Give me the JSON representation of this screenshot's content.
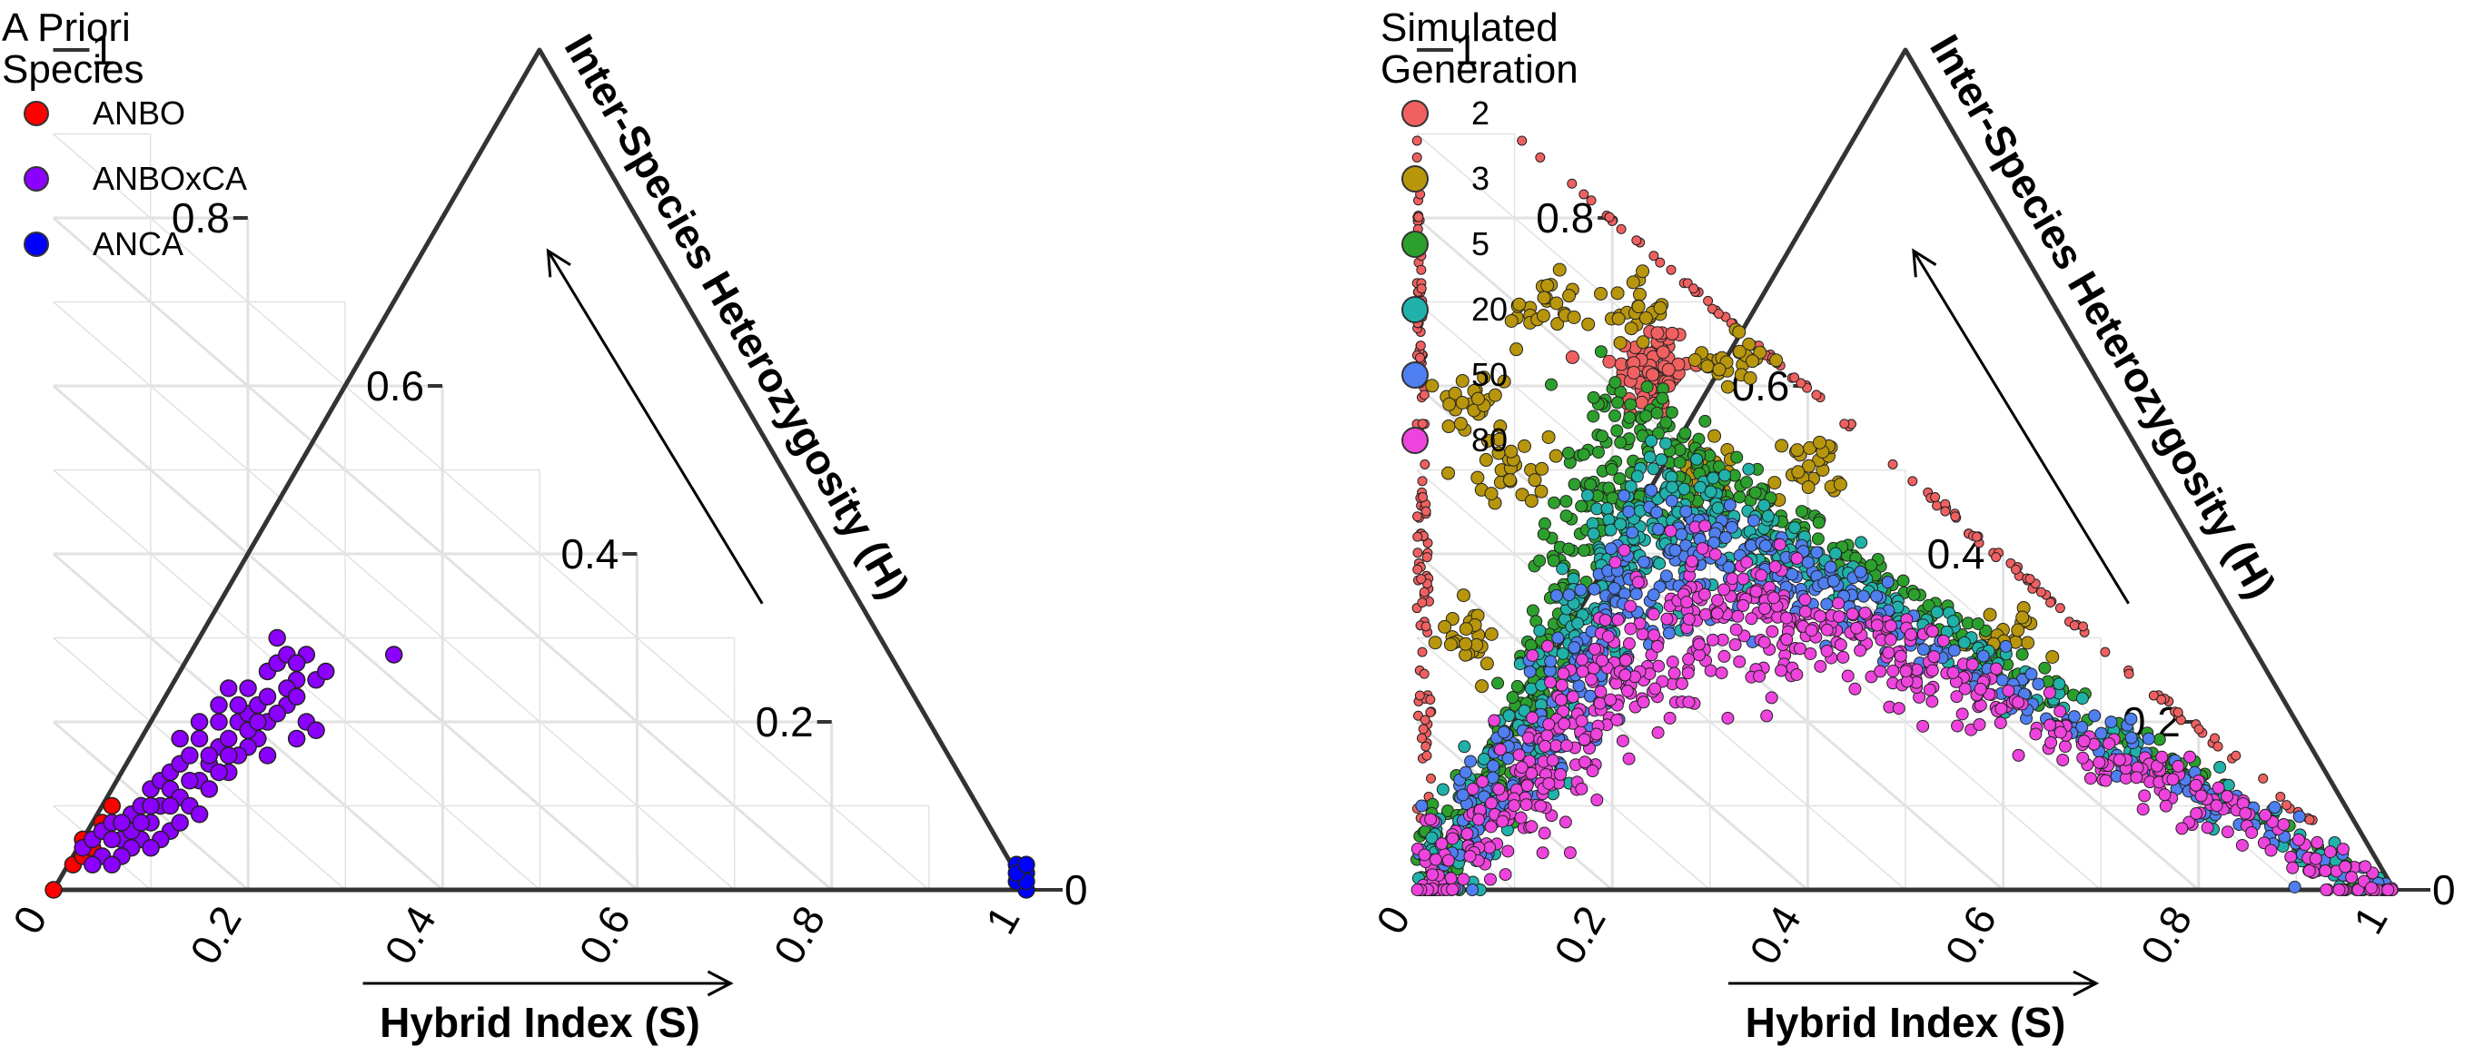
{
  "chart_data": [
    {
      "type": "scatter",
      "subtype": "ternary",
      "legend_title": "A Priori\nSpecies",
      "xlabel": "Hybrid Index (S)",
      "ylabel": "Inter-Species Heterozygosity (H)",
      "x_ticks": [
        "0",
        "0.2",
        "0.4",
        "0.6",
        "0.8",
        "1"
      ],
      "y_ticks": [
        "0",
        "0.2",
        "0.4",
        "0.6",
        "0.8",
        "1"
      ],
      "xlim": [
        0,
        1
      ],
      "ylim": [
        0,
        1
      ],
      "grid": true,
      "legend_position": "top-left",
      "series": [
        {
          "name": "ANBO",
          "color": "#ff0000",
          "points": [
            [
              0,
              0
            ],
            [
              0.02,
              0.03
            ],
            [
              0.03,
              0.04
            ],
            [
              0.04,
              0.06
            ],
            [
              0.05,
              0.08
            ],
            [
              0.06,
              0.1
            ],
            [
              0.04,
              0.05
            ],
            [
              0.05,
              0.07
            ],
            [
              0.03,
              0.06
            ]
          ]
        },
        {
          "name": "ANBOxCA",
          "color": "#8b00ff",
          "points": [
            [
              0.03,
              0.05
            ],
            [
              0.04,
              0.06
            ],
            [
              0.05,
              0.07
            ],
            [
              0.06,
              0.08
            ],
            [
              0.05,
              0.04
            ],
            [
              0.07,
              0.06
            ],
            [
              0.08,
              0.09
            ],
            [
              0.09,
              0.1
            ],
            [
              0.1,
              0.12
            ],
            [
              0.11,
              0.13
            ],
            [
              0.12,
              0.14
            ],
            [
              0.13,
              0.15
            ],
            [
              0.14,
              0.16
            ],
            [
              0.12,
              0.12
            ],
            [
              0.1,
              0.08
            ],
            [
              0.11,
              0.1
            ],
            [
              0.13,
              0.11
            ],
            [
              0.15,
              0.13
            ],
            [
              0.16,
              0.15
            ],
            [
              0.17,
              0.17
            ],
            [
              0.18,
              0.18
            ],
            [
              0.19,
              0.2
            ],
            [
              0.2,
              0.21
            ],
            [
              0.21,
              0.22
            ],
            [
              0.15,
              0.18
            ],
            [
              0.17,
              0.2
            ],
            [
              0.19,
              0.22
            ],
            [
              0.2,
              0.24
            ],
            [
              0.22,
              0.26
            ],
            [
              0.23,
              0.27
            ],
            [
              0.24,
              0.28
            ],
            [
              0.25,
              0.25
            ],
            [
              0.24,
              0.22
            ],
            [
              0.26,
              0.2
            ],
            [
              0.27,
              0.19
            ],
            [
              0.25,
              0.18
            ],
            [
              0.22,
              0.16
            ],
            [
              0.21,
              0.18
            ],
            [
              0.2,
              0.17
            ],
            [
              0.18,
              0.14
            ],
            [
              0.16,
              0.12
            ],
            [
              0.14,
              0.1
            ],
            [
              0.12,
              0.07
            ],
            [
              0.09,
              0.06
            ],
            [
              0.08,
              0.05
            ],
            [
              0.07,
              0.04
            ],
            [
              0.06,
              0.03
            ],
            [
              0.04,
              0.03
            ],
            [
              0.23,
              0.3
            ],
            [
              0.26,
              0.28
            ],
            [
              0.27,
              0.25
            ],
            [
              0.35,
              0.28
            ],
            [
              0.28,
              0.26
            ],
            [
              0.22,
              0.23
            ],
            [
              0.24,
              0.24
            ],
            [
              0.19,
              0.16
            ],
            [
              0.17,
              0.14
            ],
            [
              0.15,
              0.09
            ],
            [
              0.13,
              0.08
            ],
            [
              0.11,
              0.06
            ],
            [
              0.1,
              0.05
            ],
            [
              0.08,
              0.07
            ],
            [
              0.09,
              0.08
            ],
            [
              0.16,
              0.16
            ],
            [
              0.18,
              0.16
            ],
            [
              0.2,
              0.19
            ],
            [
              0.22,
              0.2
            ],
            [
              0.14,
              0.13
            ],
            [
              0.12,
              0.1
            ],
            [
              0.1,
              0.1
            ],
            [
              0.07,
              0.08
            ],
            [
              0.06,
              0.06
            ],
            [
              0.21,
              0.2
            ],
            [
              0.23,
              0.21
            ],
            [
              0.25,
              0.23
            ],
            [
              0.13,
              0.18
            ],
            [
              0.15,
              0.2
            ],
            [
              0.17,
              0.22
            ],
            [
              0.18,
              0.24
            ],
            [
              0.25,
              0.27
            ]
          ]
        },
        {
          "name": "ANCA",
          "color": "#0000ff",
          "points": [
            [
              0.99,
              0.03
            ],
            [
              1.0,
              0.02
            ],
            [
              1.0,
              0.0
            ],
            [
              0.99,
              0.01
            ],
            [
              1.0,
              0.01
            ],
            [
              0.99,
              0.02
            ],
            [
              1.0,
              0.03
            ]
          ]
        }
      ]
    },
    {
      "type": "scatter",
      "subtype": "ternary",
      "legend_title": "Simulated\nGeneration",
      "xlabel": "Hybrid Index (S)",
      "ylabel": "Inter-Species Heterozygosity (H)",
      "x_ticks": [
        "0",
        "0.2",
        "0.4",
        "0.6",
        "0.8",
        "1"
      ],
      "y_ticks": [
        "0",
        "0.2",
        "0.4",
        "0.6",
        "0.8",
        "1"
      ],
      "xlim": [
        0,
        1
      ],
      "ylim": [
        0,
        1
      ],
      "grid": true,
      "legend_position": "top-left",
      "series": [
        {
          "name": "2",
          "color": "#f06060",
          "pattern": "triangle edges and center",
          "h_range": [
            0.0,
            0.9
          ]
        },
        {
          "name": "3",
          "color": "#b8960c",
          "pattern": "near edges, upper clusters",
          "h_range": [
            0.2,
            0.85
          ]
        },
        {
          "name": "5",
          "color": "#2ca02c",
          "pattern": "band under arch",
          "h_at_center": 0.55
        },
        {
          "name": "20",
          "color": "#20b2aa",
          "pattern": "band under arch",
          "h_at_center": 0.47
        },
        {
          "name": "50",
          "color": "#4f7ff0",
          "pattern": "band under arch",
          "h_at_center": 0.42
        },
        {
          "name": "80",
          "color": "#ee44dd",
          "pattern": "band under arch",
          "h_at_center": 0.35
        }
      ]
    }
  ]
}
